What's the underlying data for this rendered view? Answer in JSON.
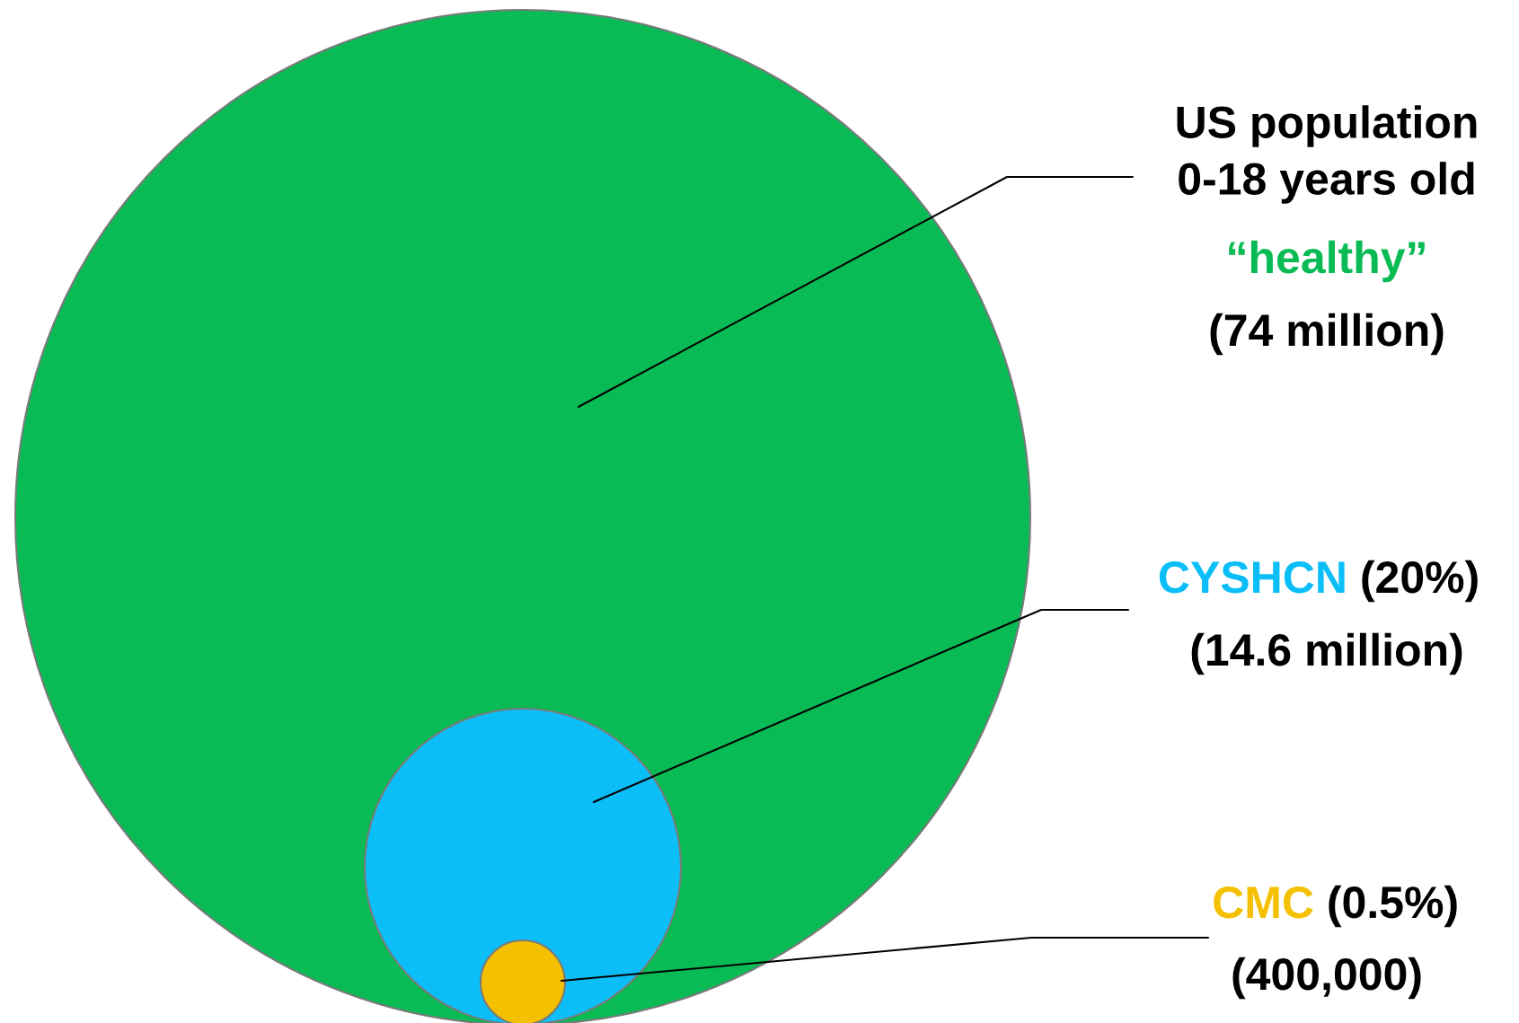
{
  "chart_data": {
    "type": "other",
    "categories": [
      "“healthy”",
      "CYSHCN",
      "CMC"
    ],
    "values": [
      74000000,
      14600000,
      400000
    ],
    "value_labels": [
      "(74 million)",
      "(14.6 million)",
      "(400,000)"
    ],
    "colors": [
      "#08bb55",
      "#0bbef8",
      "#f5c000"
    ],
    "annotations": [
      "US population\n0-18 years old",
      "(20%)",
      "(0.5%)"
    ]
  }
}
